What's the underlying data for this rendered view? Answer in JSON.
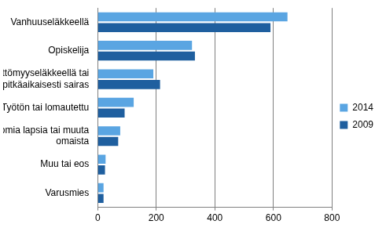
{
  "chart_data": {
    "type": "bar",
    "orientation": "horizontal",
    "categories": [
      "Vanhuuseläkkeellä",
      "Opiskelija",
      "Työkyvyttömyyseläkkeellä tai pitkäaikaisesti sairas",
      "Työtön tai lomautettu",
      "Hoitaa omia lapsia tai muuta omaista",
      "Muu tai eos",
      "Varusmies"
    ],
    "series": [
      {
        "name": "2014",
        "color": "#5aa5e2",
        "values": [
          648,
          322,
          190,
          123,
          77,
          27,
          20
        ]
      },
      {
        "name": "2009",
        "color": "#1f5f9f",
        "values": [
          590,
          332,
          213,
          92,
          70,
          25,
          20
        ]
      }
    ],
    "xlim": [
      0,
      800
    ],
    "xticks": [
      0,
      200,
      400,
      600,
      800
    ],
    "grid": true,
    "legend": "right"
  }
}
